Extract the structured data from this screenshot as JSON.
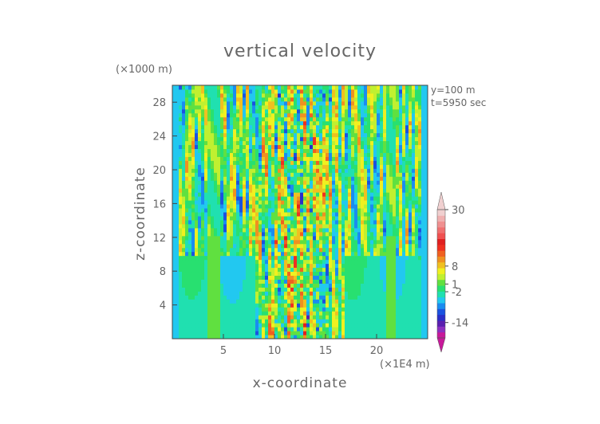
{
  "chart_data": {
    "type": "heatmap",
    "title": "vertical velocity",
    "xlabel": "x-coordinate",
    "ylabel": "z-coordinate",
    "x_unit": "(×1E4 m)",
    "y_unit": "(×1000 m)",
    "annotations": [
      "y=100 m",
      "t=5950 sec"
    ],
    "xlim": [
      0,
      25
    ],
    "ylim": [
      0,
      30
    ],
    "x_ticks": [
      5,
      10,
      15,
      20
    ],
    "y_ticks": [
      4,
      8,
      12,
      16,
      20,
      24,
      28
    ],
    "colorbar": {
      "ticks": [
        30,
        8,
        1,
        -2,
        -14
      ],
      "range": [
        -20,
        30
      ],
      "extend": "both"
    },
    "colors": [
      "#c8189a",
      "#8c2fc0",
      "#5a1fb0",
      "#2a2ec8",
      "#1a52e0",
      "#1a8cf0",
      "#22c8f0",
      "#20e0b0",
      "#28e070",
      "#60e040",
      "#c0f030",
      "#f0f020",
      "#f0c020",
      "#f09020",
      "#f06020",
      "#f03020",
      "#e02020",
      "#f05050",
      "#f07070",
      "#f09090",
      "#f0b0b0",
      "#f0d0d0"
    ]
  }
}
